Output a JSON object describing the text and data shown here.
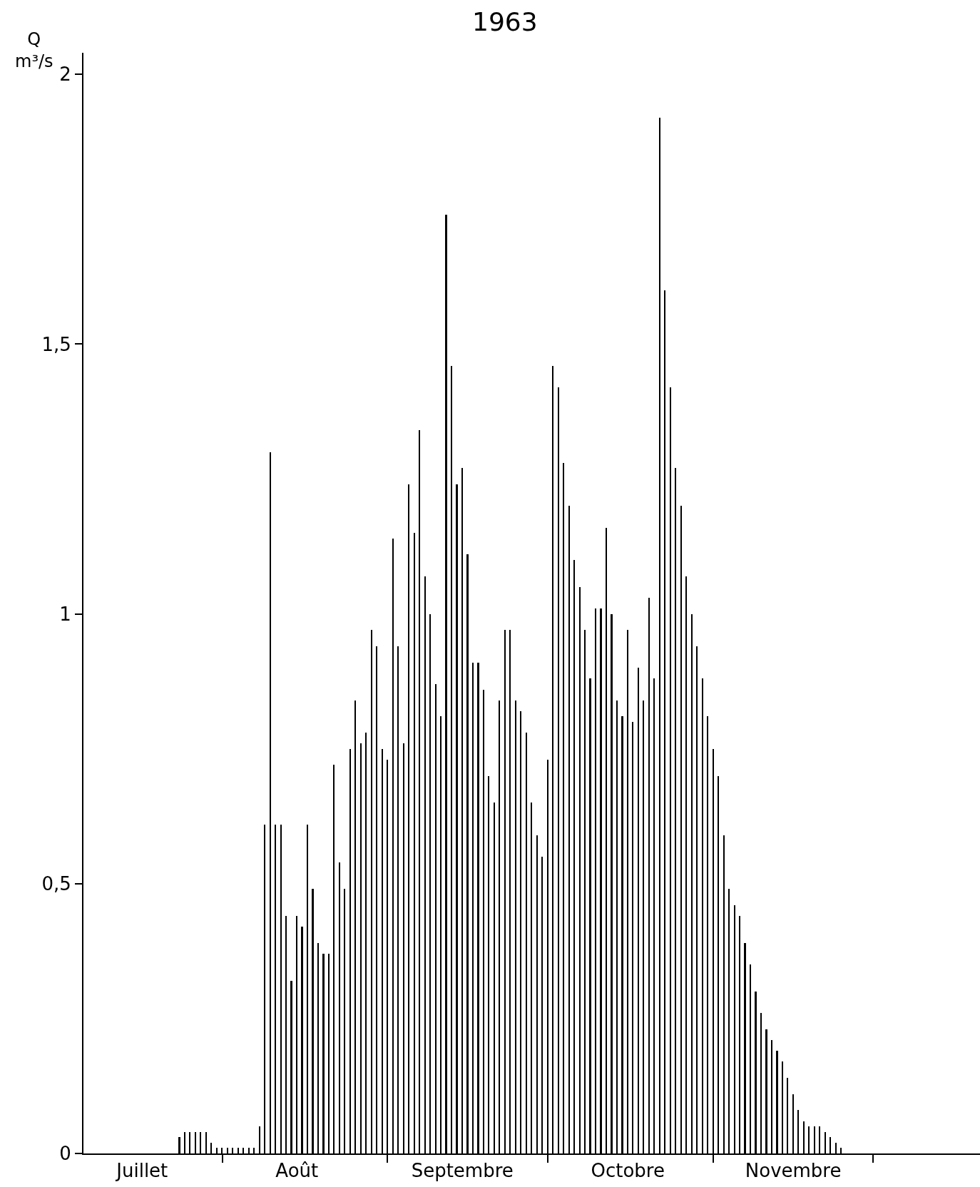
{
  "chart_data": {
    "type": "bar",
    "title": "1963",
    "ylabel": "Q m³/s",
    "x": [
      "1963-07-24",
      "1963-07-25",
      "1963-07-26",
      "1963-07-27",
      "1963-07-28",
      "1963-07-29",
      "1963-07-30",
      "1963-07-31",
      "1963-08-01",
      "1963-08-02",
      "1963-08-03",
      "1963-08-04",
      "1963-08-05",
      "1963-08-06",
      "1963-08-07",
      "1963-08-08",
      "1963-08-09",
      "1963-08-10",
      "1963-08-11",
      "1963-08-12",
      "1963-08-13",
      "1963-08-14",
      "1963-08-15",
      "1963-08-16",
      "1963-08-17",
      "1963-08-18",
      "1963-08-19",
      "1963-08-20",
      "1963-08-21",
      "1963-08-22",
      "1963-08-23",
      "1963-08-24",
      "1963-08-25",
      "1963-08-26",
      "1963-08-27",
      "1963-08-28",
      "1963-08-29",
      "1963-08-30",
      "1963-08-31",
      "1963-09-01",
      "1963-09-02",
      "1963-09-03",
      "1963-09-04",
      "1963-09-05",
      "1963-09-06",
      "1963-09-07",
      "1963-09-08",
      "1963-09-09",
      "1963-09-10",
      "1963-09-11",
      "1963-09-12",
      "1963-09-13",
      "1963-09-14",
      "1963-09-15",
      "1963-09-16",
      "1963-09-17",
      "1963-09-18",
      "1963-09-19",
      "1963-09-20",
      "1963-09-21",
      "1963-09-22",
      "1963-09-23",
      "1963-09-24",
      "1963-09-25",
      "1963-09-26",
      "1963-09-27",
      "1963-09-28",
      "1963-09-29",
      "1963-09-30",
      "1963-10-01",
      "1963-10-02",
      "1963-10-03",
      "1963-10-04",
      "1963-10-05",
      "1963-10-06",
      "1963-10-07",
      "1963-10-08",
      "1963-10-09",
      "1963-10-10",
      "1963-10-11",
      "1963-10-12",
      "1963-10-13",
      "1963-10-14",
      "1963-10-15",
      "1963-10-16",
      "1963-10-17",
      "1963-10-18",
      "1963-10-19",
      "1963-10-20",
      "1963-10-21",
      "1963-10-22",
      "1963-10-23",
      "1963-10-24",
      "1963-10-25",
      "1963-10-26",
      "1963-10-27",
      "1963-10-28",
      "1963-10-29",
      "1963-10-30",
      "1963-10-31",
      "1963-11-01",
      "1963-11-02",
      "1963-11-03",
      "1963-11-04",
      "1963-11-05",
      "1963-11-06",
      "1963-11-07",
      "1963-11-08",
      "1963-11-09",
      "1963-11-10",
      "1963-11-11",
      "1963-11-12",
      "1963-11-13",
      "1963-11-14",
      "1963-11-15",
      "1963-11-16",
      "1963-11-17",
      "1963-11-18",
      "1963-11-19",
      "1963-11-20",
      "1963-11-21",
      "1963-11-22",
      "1963-11-23",
      "1963-11-24",
      "1963-11-25"
    ],
    "values": [
      0.03,
      0.04,
      0.04,
      0.04,
      0.04,
      0.04,
      0.02,
      0.01,
      0.01,
      0.01,
      0.01,
      0.01,
      0.01,
      0.01,
      0.01,
      0.05,
      0.61,
      1.3,
      0.61,
      0.61,
      0.44,
      0.32,
      0.44,
      0.42,
      0.61,
      0.49,
      0.39,
      0.37,
      0.37,
      0.72,
      0.54,
      0.49,
      0.75,
      0.84,
      0.76,
      0.78,
      0.97,
      0.94,
      0.75,
      0.73,
      1.14,
      0.94,
      0.76,
      1.24,
      1.15,
      1.34,
      1.07,
      1.0,
      0.87,
      0.81,
      1.74,
      1.46,
      1.24,
      1.27,
      1.11,
      0.91,
      0.91,
      0.86,
      0.7,
      0.65,
      0.84,
      0.97,
      0.97,
      0.84,
      0.82,
      0.78,
      0.65,
      0.59,
      0.55,
      0.73,
      1.46,
      1.42,
      1.28,
      1.2,
      1.1,
      1.05,
      0.97,
      0.88,
      1.01,
      1.01,
      1.16,
      1.0,
      0.84,
      0.81,
      0.97,
      0.8,
      0.9,
      0.84,
      1.03,
      0.88,
      1.92,
      1.6,
      1.42,
      1.27,
      1.2,
      1.07,
      1.0,
      0.94,
      0.88,
      0.81,
      0.75,
      0.7,
      0.59,
      0.49,
      0.46,
      0.44,
      0.39,
      0.35,
      0.3,
      0.26,
      0.23,
      0.21,
      0.19,
      0.17,
      0.14,
      0.11,
      0.08,
      0.06,
      0.05,
      0.05,
      0.05,
      0.04,
      0.03,
      0.02,
      0.01
    ],
    "color": "#000000",
    "ylim": [
      0,
      2.04
    ],
    "yticks": [
      0,
      {
        "value": 0.5,
        "label": "0,5"
      },
      1,
      {
        "value": 1.5,
        "label": "1,5"
      },
      2
    ],
    "xlim": [
      "1963-07-06",
      "1963-12-21"
    ],
    "xticks": [
      {
        "value": "1963-07-17",
        "label": "Juillet"
      },
      {
        "value": "1963-08-01",
        "label": null
      },
      {
        "value": "1963-08-15",
        "label": "Août"
      },
      {
        "value": "1963-09-01",
        "label": null
      },
      {
        "value": "1963-09-15",
        "label": "Septembre"
      },
      {
        "value": "1963-10-01",
        "label": null
      },
      {
        "value": "1963-10-16",
        "label": "Octobre"
      },
      {
        "value": "1963-11-01",
        "label": null
      },
      {
        "value": "1963-11-16",
        "label": "Novembre"
      },
      {
        "value": "1963-12-01",
        "label": null
      }
    ]
  }
}
